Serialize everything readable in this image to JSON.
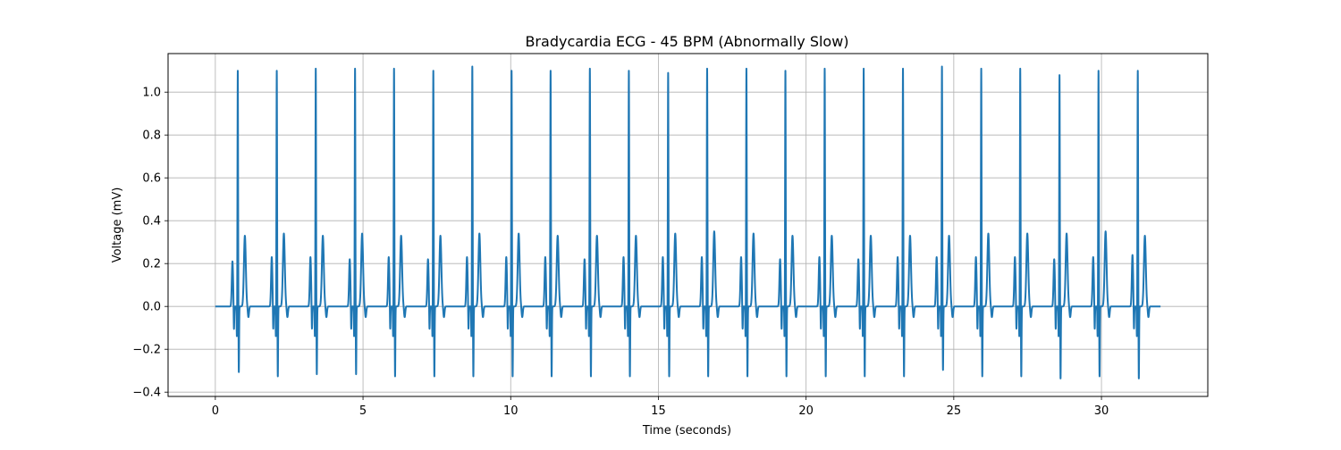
{
  "chart_data": {
    "type": "line",
    "title": "Bradycardia ECG - 45 BPM (Abnormally Slow)",
    "xlabel": "Time (seconds)",
    "ylabel": "Voltage (mV)",
    "xlim": [
      -1.6,
      33.6
    ],
    "ylim": [
      -0.42,
      1.18
    ],
    "xticks": [
      0,
      5,
      10,
      15,
      20,
      25,
      30
    ],
    "xtick_labels": [
      "0",
      "5",
      "10",
      "15",
      "20",
      "25",
      "30"
    ],
    "yticks": [
      -0.4,
      -0.2,
      0.0,
      0.2,
      0.4,
      0.6,
      0.8,
      1.0
    ],
    "ytick_labels": [
      "−0.4",
      "−0.2",
      "0.0",
      "0.2",
      "0.4",
      "0.6",
      "0.8",
      "1.0"
    ],
    "grid": true,
    "colors": {
      "line": "#1f77b4",
      "grid": "#b0b0b0"
    },
    "series": [
      {
        "x_start": 0,
        "x_end": 32,
        "baseline": 0.0,
        "beats": [
          {
            "p": 0.58,
            "r": 0.76,
            "p_amp": 0.21,
            "r_amp": 1.1,
            "s_amp": -0.31,
            "t_amp": 0.33
          },
          {
            "p": 1.91,
            "r": 2.08,
            "p_amp": 0.23,
            "r_amp": 1.1,
            "s_amp": -0.33,
            "t_amp": 0.34
          },
          {
            "p": 3.22,
            "r": 3.4,
            "p_amp": 0.23,
            "r_amp": 1.11,
            "s_amp": -0.32,
            "t_amp": 0.33
          },
          {
            "p": 4.55,
            "r": 4.73,
            "p_amp": 0.22,
            "r_amp": 1.11,
            "s_amp": -0.32,
            "t_amp": 0.34
          },
          {
            "p": 5.87,
            "r": 6.05,
            "p_amp": 0.23,
            "r_amp": 1.11,
            "s_amp": -0.33,
            "t_amp": 0.33
          },
          {
            "p": 7.2,
            "r": 7.38,
            "p_amp": 0.22,
            "r_amp": 1.1,
            "s_amp": -0.33,
            "t_amp": 0.33
          },
          {
            "p": 8.52,
            "r": 8.7,
            "p_amp": 0.23,
            "r_amp": 1.12,
            "s_amp": -0.33,
            "t_amp": 0.34
          },
          {
            "p": 9.85,
            "r": 10.03,
            "p_amp": 0.23,
            "r_amp": 1.1,
            "s_amp": -0.33,
            "t_amp": 0.34
          },
          {
            "p": 11.17,
            "r": 11.35,
            "p_amp": 0.23,
            "r_amp": 1.1,
            "s_amp": -0.33,
            "t_amp": 0.33
          },
          {
            "p": 12.5,
            "r": 12.68,
            "p_amp": 0.22,
            "r_amp": 1.11,
            "s_amp": -0.33,
            "t_amp": 0.33
          },
          {
            "p": 13.82,
            "r": 14.0,
            "p_amp": 0.23,
            "r_amp": 1.1,
            "s_amp": -0.33,
            "t_amp": 0.33
          },
          {
            "p": 15.15,
            "r": 15.33,
            "p_amp": 0.23,
            "r_amp": 1.09,
            "s_amp": -0.33,
            "t_amp": 0.34
          },
          {
            "p": 16.47,
            "r": 16.65,
            "p_amp": 0.23,
            "r_amp": 1.11,
            "s_amp": -0.33,
            "t_amp": 0.35
          },
          {
            "p": 17.8,
            "r": 17.98,
            "p_amp": 0.23,
            "r_amp": 1.11,
            "s_amp": -0.33,
            "t_amp": 0.34
          },
          {
            "p": 19.12,
            "r": 19.3,
            "p_amp": 0.22,
            "r_amp": 1.1,
            "s_amp": -0.33,
            "t_amp": 0.33
          },
          {
            "p": 20.45,
            "r": 20.63,
            "p_amp": 0.23,
            "r_amp": 1.11,
            "s_amp": -0.33,
            "t_amp": 0.33
          },
          {
            "p": 21.77,
            "r": 21.95,
            "p_amp": 0.22,
            "r_amp": 1.11,
            "s_amp": -0.33,
            "t_amp": 0.33
          },
          {
            "p": 23.1,
            "r": 23.28,
            "p_amp": 0.23,
            "r_amp": 1.11,
            "s_amp": -0.33,
            "t_amp": 0.33
          },
          {
            "p": 24.42,
            "r": 24.6,
            "p_amp": 0.23,
            "r_amp": 1.12,
            "s_amp": -0.3,
            "t_amp": 0.33
          },
          {
            "p": 25.75,
            "r": 25.93,
            "p_amp": 0.23,
            "r_amp": 1.11,
            "s_amp": -0.33,
            "t_amp": 0.34
          },
          {
            "p": 27.07,
            "r": 27.25,
            "p_amp": 0.23,
            "r_amp": 1.11,
            "s_amp": -0.33,
            "t_amp": 0.34
          },
          {
            "p": 28.4,
            "r": 28.58,
            "p_amp": 0.22,
            "r_amp": 1.08,
            "s_amp": -0.34,
            "t_amp": 0.34
          },
          {
            "p": 29.72,
            "r": 29.9,
            "p_amp": 0.23,
            "r_amp": 1.1,
            "s_amp": -0.33,
            "t_amp": 0.35
          },
          {
            "p": 31.05,
            "r": 31.23,
            "p_amp": 0.24,
            "r_amp": 1.1,
            "s_amp": -0.34,
            "t_amp": 0.33
          }
        ]
      }
    ]
  }
}
